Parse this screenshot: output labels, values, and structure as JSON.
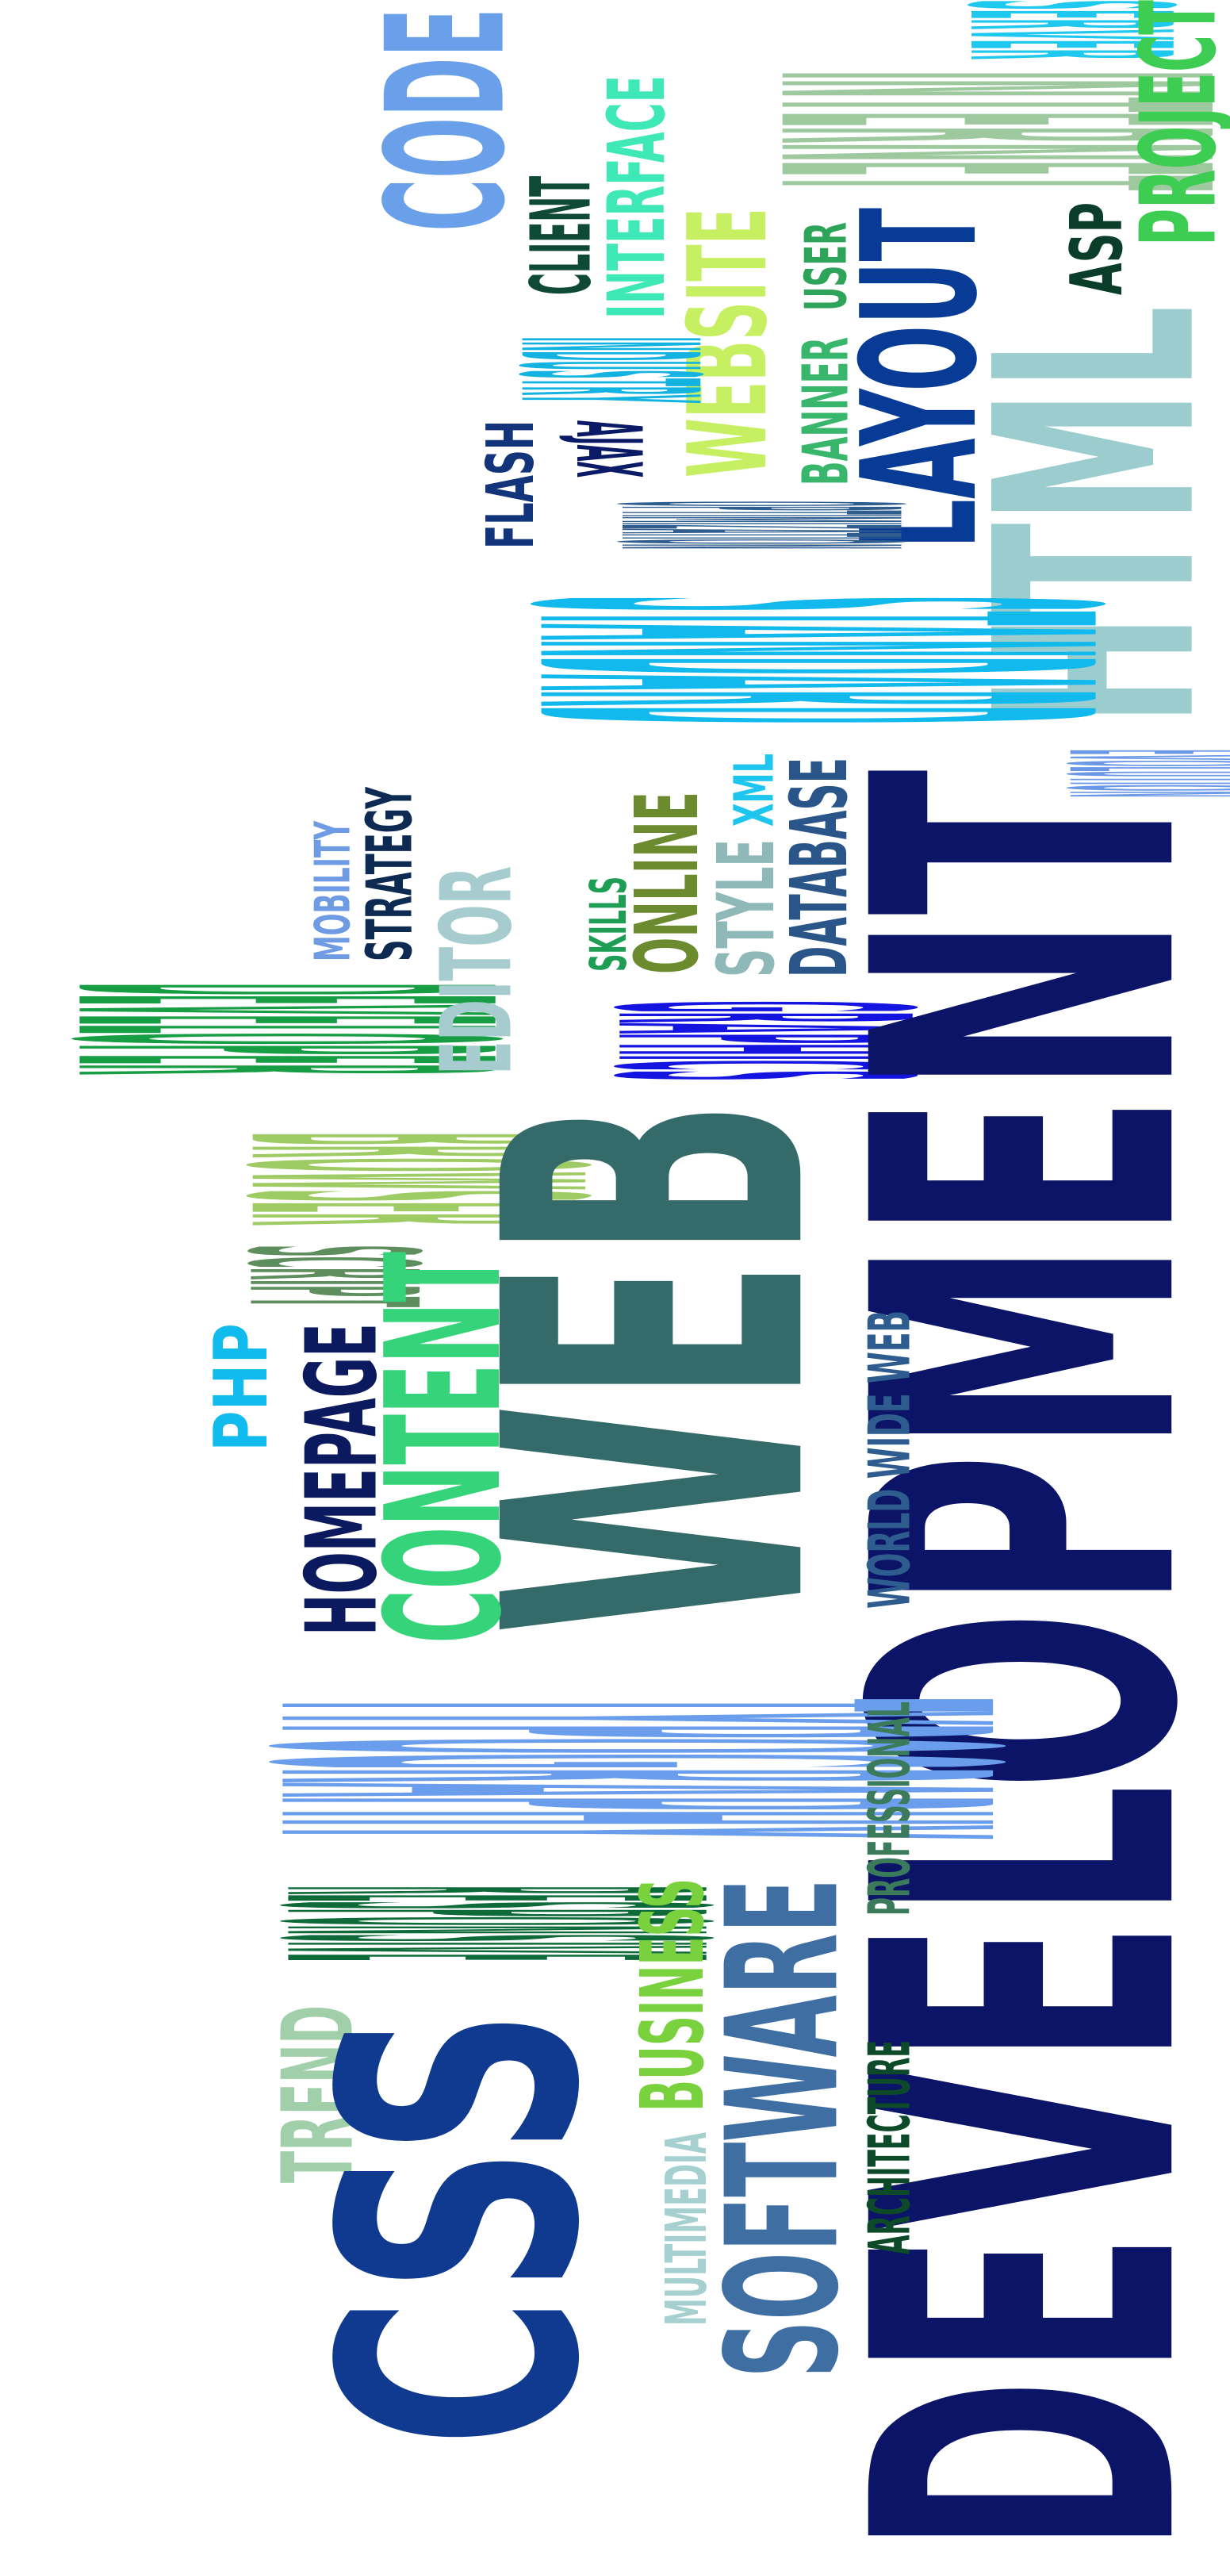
{
  "title": "",
  "words": [
    {
      "id": "code",
      "text": "CODE",
      "color": "#6aa0ea",
      "orientation": "up"
    },
    {
      "id": "server",
      "text": "SERVER",
      "color": "#1ec8ee",
      "orientation": "down"
    },
    {
      "id": "internet",
      "text": "INTERNET",
      "color": "#9ec89e",
      "orientation": "down"
    },
    {
      "id": "project",
      "text": "PROJECT",
      "color": "#3ccd52",
      "orientation": "up"
    },
    {
      "id": "interface",
      "text": "INTERFACE",
      "color": "#3ee8b7",
      "orientation": "up"
    },
    {
      "id": "client",
      "text": "CLIENT",
      "color": "#0f4a36",
      "orientation": "up"
    },
    {
      "id": "website",
      "text": "WEBSITE",
      "color": "#c6f062",
      "orientation": "up"
    },
    {
      "id": "user",
      "text": "USER",
      "color": "#2ea35a",
      "orientation": "up"
    },
    {
      "id": "asp",
      "text": "ASP",
      "color": "#0b3d2b",
      "orientation": "up"
    },
    {
      "id": "layout",
      "text": "LAYOUT",
      "color": "#083b96",
      "orientation": "up"
    },
    {
      "id": "html",
      "text": "HTML",
      "color": "#9bcdcf",
      "orientation": "up"
    },
    {
      "id": "industry",
      "text": "INDUSTRY",
      "color": "#12b3e0",
      "orientation": "down"
    },
    {
      "id": "banner",
      "text": "BANNER",
      "color": "#38b76c",
      "orientation": "up"
    },
    {
      "id": "ajax",
      "text": "AJAX",
      "color": "#0b1a66",
      "orientation": "down"
    },
    {
      "id": "flash",
      "text": "FLASH",
      "color": "#12347a",
      "orientation": "up"
    },
    {
      "id": "optimization",
      "text": "OPTIMIZATION",
      "color": "#2e5d8e",
      "orientation": "down"
    },
    {
      "id": "standard",
      "text": "STANDARD",
      "color": "#12b9ec",
      "orientation": "down"
    },
    {
      "id": "evolution",
      "text": "EVOLUTION",
      "color": "#6a98e6",
      "orientation": "down"
    },
    {
      "id": "mobility",
      "text": "MOBILITY",
      "color": "#6e9be4",
      "orientation": "up"
    },
    {
      "id": "strategy",
      "text": "STRATEGY",
      "color": "#0d2a52",
      "orientation": "up"
    },
    {
      "id": "skills",
      "text": "SKILLS",
      "color": "#1e9d55",
      "orientation": "up"
    },
    {
      "id": "online",
      "text": "ONLINE",
      "color": "#6c8a2e",
      "orientation": "up"
    },
    {
      "id": "style",
      "text": "STYLE",
      "color": "#8fb9b9",
      "orientation": "up"
    },
    {
      "id": "xml",
      "text": "XML",
      "color": "#1ec5ef",
      "orientation": "up"
    },
    {
      "id": "database",
      "text": "DATABASE",
      "color": "#2a5588",
      "orientation": "up"
    },
    {
      "id": "developer",
      "text": "DEVELOPER",
      "color": "#179d43",
      "orientation": "down"
    },
    {
      "id": "editor",
      "text": "EDITOR",
      "color": "#a6ccd0",
      "orientation": "up"
    },
    {
      "id": "graphics",
      "text": "GRAPHICS",
      "color": "#1414e0",
      "orientation": "down"
    },
    {
      "id": "development",
      "text": "DEVELOPMENT",
      "color": "#0b1466",
      "orientation": "up"
    },
    {
      "id": "browser",
      "text": "BROWSER",
      "color": "#9ecb64",
      "orientation": "down"
    },
    {
      "id": "web",
      "text": "WEB",
      "color": "#356a6a",
      "orientation": "up"
    },
    {
      "id": "script",
      "text": "SCRIPT",
      "color": "#5e8e5e",
      "orientation": "down"
    },
    {
      "id": "php",
      "text": "PHP",
      "color": "#12bbee",
      "orientation": "up"
    },
    {
      "id": "homepage",
      "text": "HOMEPAGE",
      "color": "#0b1a5e",
      "orientation": "up"
    },
    {
      "id": "content",
      "text": "CONTENT",
      "color": "#36d47a",
      "orientation": "up"
    },
    {
      "id": "world_wide_web",
      "text": "WORLD WIDE WEB",
      "color": "#2e5c8e",
      "orientation": "up"
    },
    {
      "id": "typography",
      "text": "TYPOGRAPHY",
      "color": "#6a9eec",
      "orientation": "down"
    },
    {
      "id": "professional",
      "text": "PROFESSIONAL",
      "color": "#3c7a5c",
      "orientation": "up"
    },
    {
      "id": "responsive",
      "text": "RESPONSIVE",
      "color": "#0f6a3a",
      "orientation": "down"
    },
    {
      "id": "trend",
      "text": "TREND",
      "color": "#a0cfaa",
      "orientation": "up"
    },
    {
      "id": "business",
      "text": "BUSINESS",
      "color": "#7ad13e",
      "orientation": "up"
    },
    {
      "id": "software",
      "text": "SOFTWARE",
      "color": "#3f6ea3",
      "orientation": "up"
    },
    {
      "id": "architecture",
      "text": "ARCHITECTURE",
      "color": "#0d4a2a",
      "orientation": "up"
    },
    {
      "id": "multimedia",
      "text": "MULTIMEDIA",
      "color": "#a6d0d0",
      "orientation": "up"
    },
    {
      "id": "css",
      "text": "CSS",
      "color": "#0f3a90",
      "orientation": "up"
    }
  ]
}
